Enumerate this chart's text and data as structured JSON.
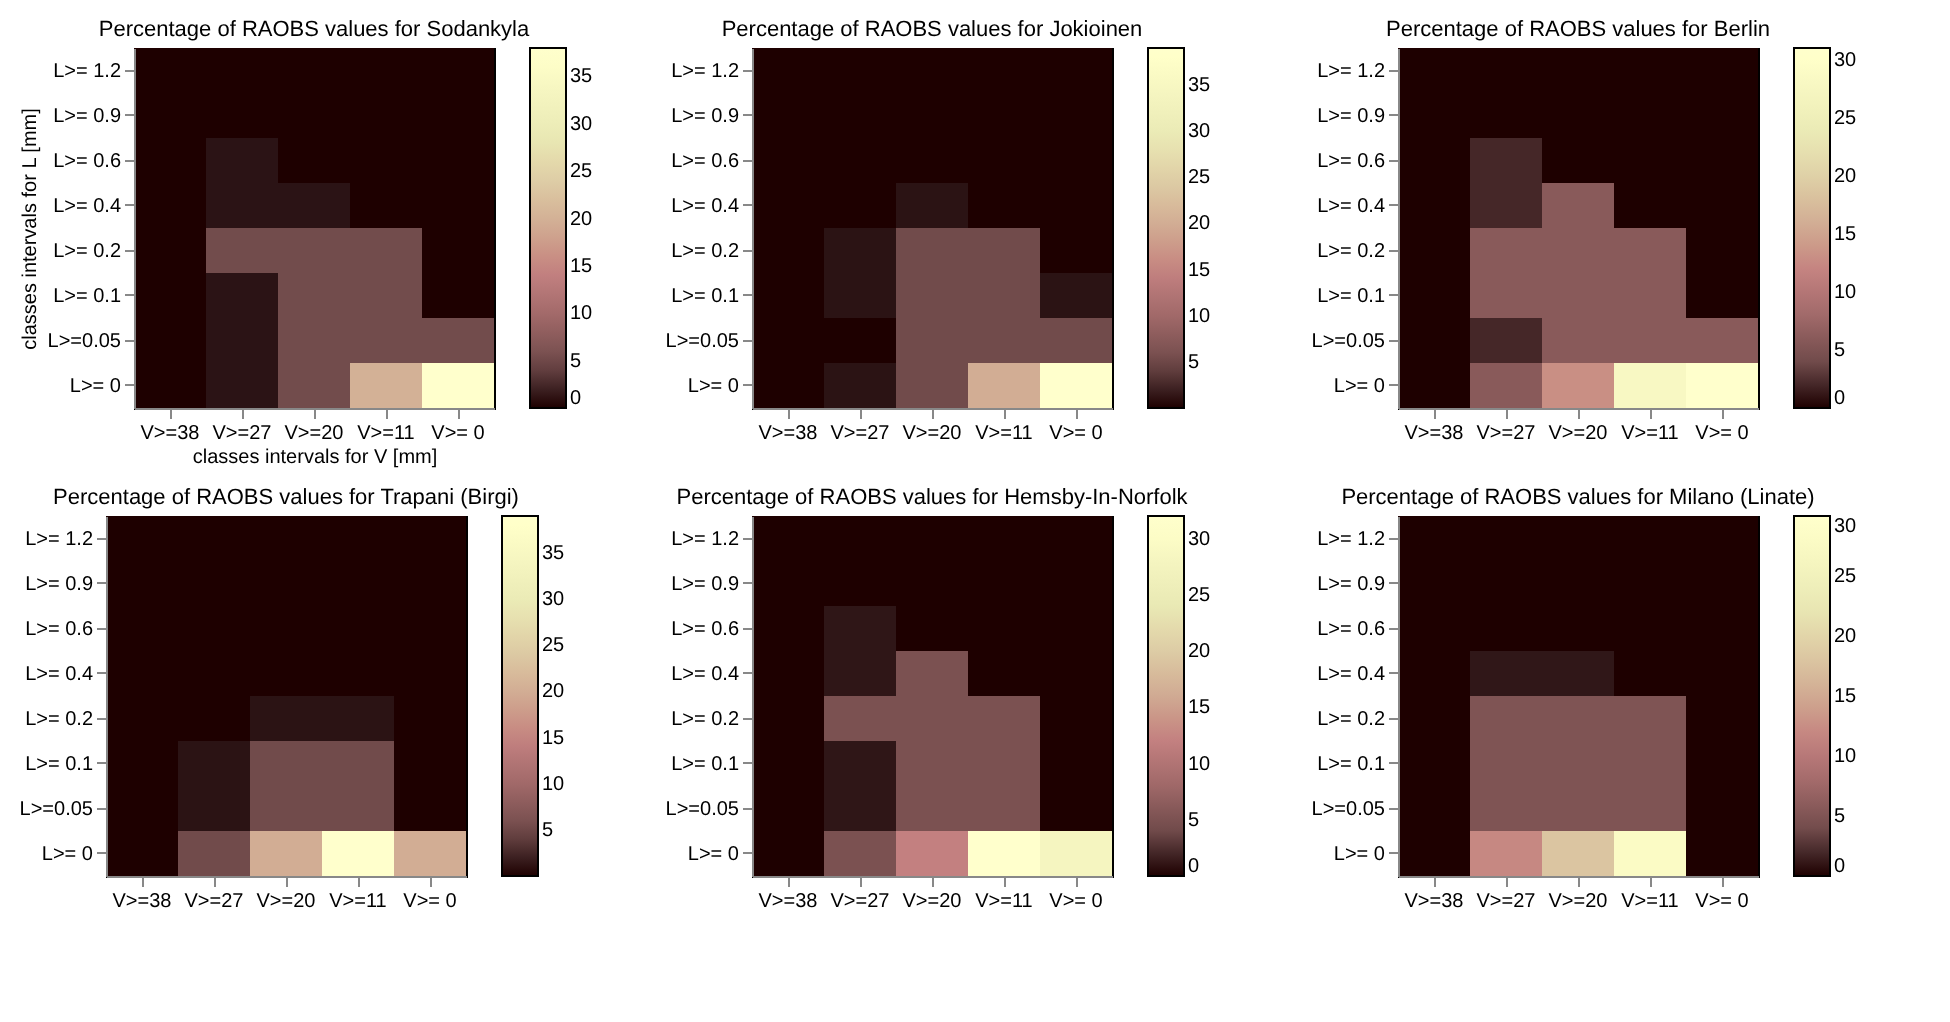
{
  "chart_data": [
    {
      "type": "heatmap",
      "title": "Percentage of RAOBS values for Sodankyla",
      "xlabel": "classes intervals for V [mm]",
      "ylabel": "classes intervals for L [mm]",
      "categories": [
        "V>=38",
        "V>=27",
        "V>=20",
        "V>=11",
        "V>= 0"
      ],
      "y_categories": [
        "L>= 1.2",
        "L>= 0.9",
        "L>= 0.6",
        "L>= 0.4",
        "L>= 0.2",
        "L>= 0.1",
        "L>=0.05",
        "L>=  0"
      ],
      "cells": [
        [
          0,
          0,
          0,
          0,
          0
        ],
        [
          0,
          0,
          0,
          0,
          0
        ],
        [
          0,
          1,
          0,
          0,
          0
        ],
        [
          0,
          1,
          1,
          0,
          0
        ],
        [
          0,
          5,
          5,
          5,
          0
        ],
        [
          0,
          1,
          5,
          5,
          0
        ],
        [
          0,
          1,
          5,
          5,
          5
        ],
        [
          0,
          1,
          5,
          20,
          38
        ]
      ],
      "clim": [
        0,
        38
      ],
      "cticks": [
        0,
        5,
        10,
        15,
        20,
        25,
        30,
        35
      ]
    },
    {
      "type": "heatmap",
      "title": "Percentage of RAOBS values for Jokioinen",
      "categories": [
        "V>=38",
        "V>=27",
        "V>=20",
        "V>=11",
        "V>= 0"
      ],
      "y_categories": [
        "L>= 1.2",
        "L>= 0.9",
        "L>= 0.6",
        "L>= 0.4",
        "L>= 0.2",
        "L>= 0.1",
        "L>=0.05",
        "L>=  0"
      ],
      "cells": [
        [
          0,
          0,
          0,
          0,
          0
        ],
        [
          0,
          0,
          0,
          0,
          0
        ],
        [
          0,
          0,
          0,
          0,
          0
        ],
        [
          0,
          0,
          1,
          0,
          0
        ],
        [
          0,
          1,
          5,
          5,
          0
        ],
        [
          0,
          1,
          5,
          5,
          1
        ],
        [
          0,
          0,
          5,
          5,
          5
        ],
        [
          0,
          1,
          5,
          20,
          39
        ]
      ],
      "clim": [
        0,
        39
      ],
      "cticks": [
        5,
        10,
        15,
        20,
        25,
        30,
        35
      ]
    },
    {
      "type": "heatmap",
      "title": "Percentage of RAOBS values for Berlin",
      "categories": [
        "V>=38",
        "V>=27",
        "V>=20",
        "V>=11",
        "V>= 0"
      ],
      "y_categories": [
        "L>= 1.2",
        "L>= 0.9",
        "L>= 0.6",
        "L>= 0.4",
        "L>= 0.2",
        "L>= 0.1",
        "L>=0.05",
        "L>=  0"
      ],
      "cells": [
        [
          0,
          0,
          0,
          0,
          0
        ],
        [
          0,
          0,
          0,
          0,
          0
        ],
        [
          0,
          2,
          0,
          0,
          0
        ],
        [
          0,
          2,
          6,
          0,
          0
        ],
        [
          0,
          6,
          6,
          6,
          0
        ],
        [
          0,
          6,
          6,
          6,
          0
        ],
        [
          0,
          2,
          6,
          6,
          6
        ],
        [
          0,
          6,
          13,
          28,
          31
        ]
      ],
      "clim": [
        0,
        31
      ],
      "cticks": [
        0,
        5,
        10,
        15,
        20,
        25,
        30
      ]
    },
    {
      "type": "heatmap",
      "title": "Percentage of RAOBS values for Trapani (Birgi)",
      "categories": [
        "V>=38",
        "V>=27",
        "V>=20",
        "V>=11",
        "V>= 0"
      ],
      "y_categories": [
        "L>= 1.2",
        "L>= 0.9",
        "L>= 0.6",
        "L>= 0.4",
        "L>= 0.2",
        "L>= 0.1",
        "L>=0.05",
        "L>=  0"
      ],
      "cells": [
        [
          0,
          0,
          0,
          0,
          0
        ],
        [
          0,
          0,
          0,
          0,
          0
        ],
        [
          0,
          0,
          0,
          0,
          0
        ],
        [
          0,
          0,
          0,
          0,
          0
        ],
        [
          0,
          0,
          1,
          1,
          0
        ],
        [
          0,
          1,
          5,
          5,
          0
        ],
        [
          0,
          1,
          5,
          5,
          0
        ],
        [
          0,
          5,
          20,
          39,
          20
        ]
      ],
      "clim": [
        0,
        39
      ],
      "cticks": [
        5,
        10,
        15,
        20,
        25,
        30,
        35
      ]
    },
    {
      "type": "heatmap",
      "title": "Percentage of RAOBS values for Hemsby-In-Norfolk",
      "categories": [
        "V>=38",
        "V>=27",
        "V>=20",
        "V>=11",
        "V>= 0"
      ],
      "y_categories": [
        "L>= 1.2",
        "L>= 0.9",
        "L>= 0.6",
        "L>= 0.4",
        "L>= 0.2",
        "L>= 0.1",
        "L>=0.05",
        "L>=  0"
      ],
      "cells": [
        [
          0,
          0,
          0,
          0,
          0
        ],
        [
          0,
          0,
          0,
          0,
          0
        ],
        [
          0,
          1,
          0,
          0,
          0
        ],
        [
          0,
          1,
          5,
          0,
          0
        ],
        [
          0,
          5,
          5,
          5,
          0
        ],
        [
          0,
          1,
          5,
          5,
          0
        ],
        [
          0,
          1,
          5,
          5,
          0
        ],
        [
          0,
          5,
          12,
          32,
          28
        ]
      ],
      "clim": [
        0,
        32
      ],
      "cticks": [
        0,
        5,
        10,
        15,
        20,
        25,
        30
      ]
    },
    {
      "type": "heatmap",
      "title": "Percentage of RAOBS values for Milano (Linate)",
      "categories": [
        "V>=38",
        "V>=27",
        "V>=20",
        "V>=11",
        "V>= 0"
      ],
      "y_categories": [
        "L>= 1.2",
        "L>= 0.9",
        "L>= 0.6",
        "L>= 0.4",
        "L>= 0.2",
        "L>= 0.1",
        "L>=0.05",
        "L>=  0"
      ],
      "cells": [
        [
          0,
          0,
          0,
          0,
          0
        ],
        [
          0,
          0,
          0,
          0,
          0
        ],
        [
          0,
          0,
          0,
          0,
          0
        ],
        [
          0,
          1,
          1,
          0,
          0
        ],
        [
          0,
          5,
          5,
          5,
          0
        ],
        [
          0,
          5,
          5,
          5,
          0
        ],
        [
          0,
          5,
          5,
          5,
          0
        ],
        [
          0,
          12,
          18,
          28,
          0
        ]
      ],
      "clim": [
        0,
        30
      ],
      "cticks": [
        0,
        5,
        10,
        15,
        20,
        25,
        30
      ]
    }
  ]
}
